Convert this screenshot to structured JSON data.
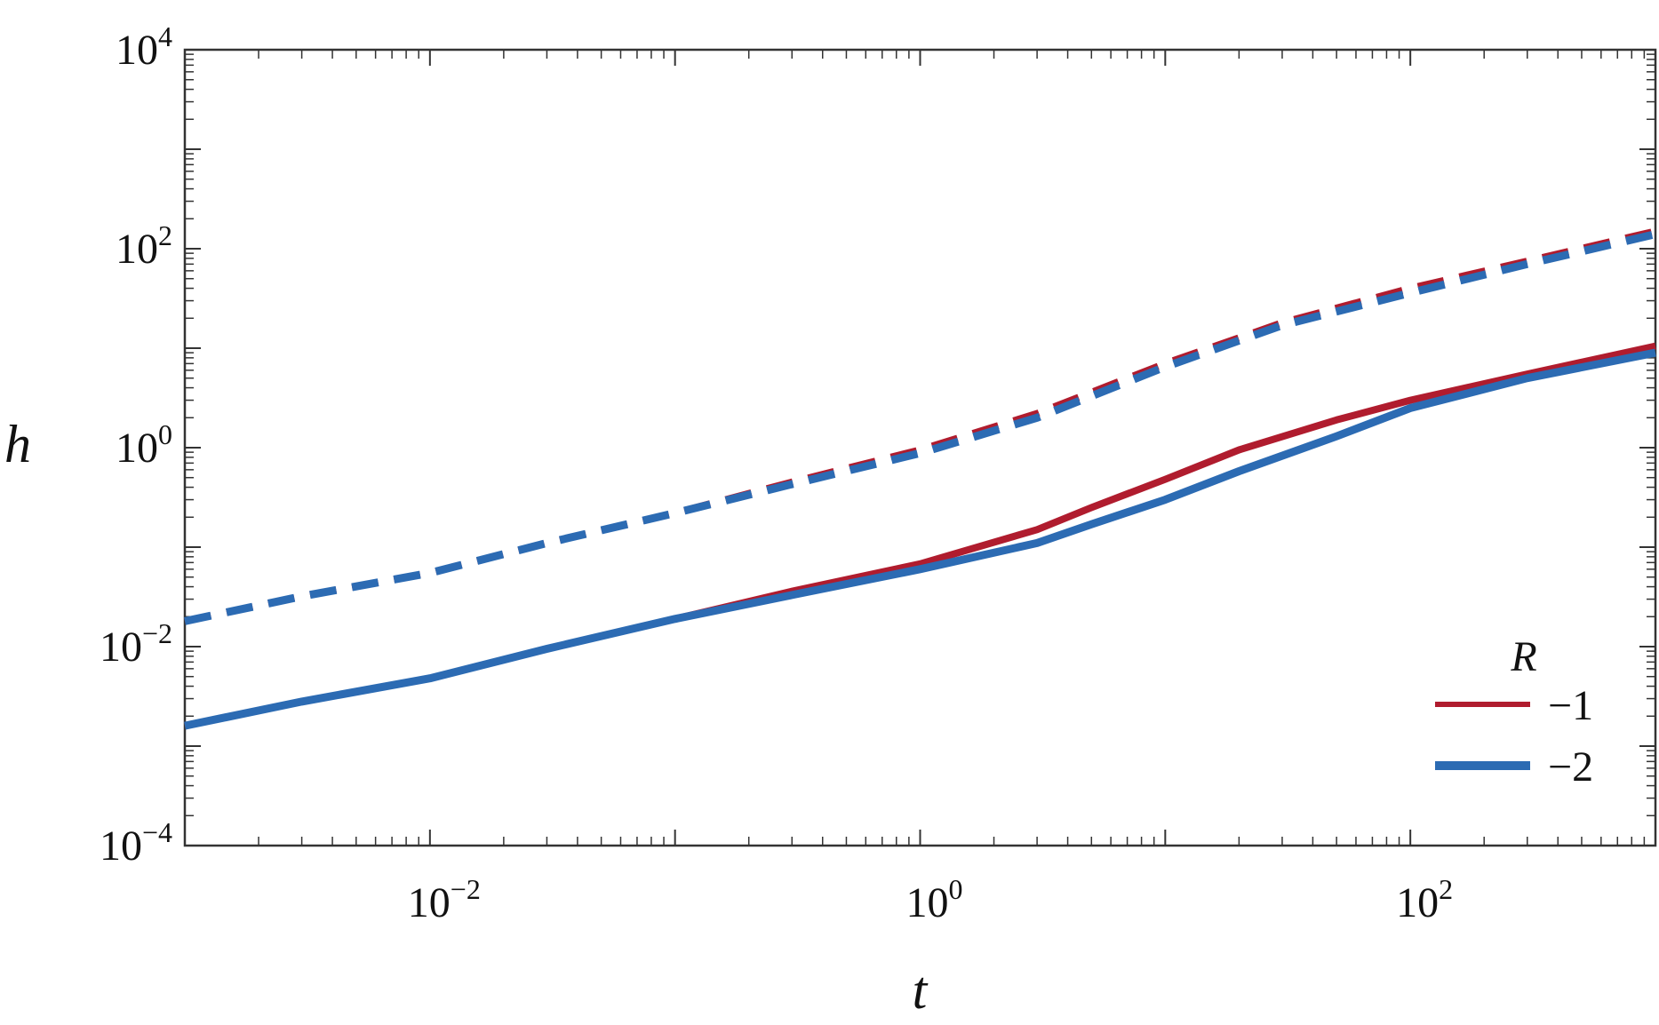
{
  "chart_data": {
    "type": "line",
    "xlabel": "t",
    "ylabel": "h",
    "xscale": "log",
    "yscale": "log",
    "xlim": [
      0.001,
      1000
    ],
    "ylim": [
      0.0001,
      10000
    ],
    "x_ticks": [
      {
        "base": "10",
        "exp": "−2",
        "value": 0.01
      },
      {
        "base": "10",
        "exp": "0",
        "value": 1
      },
      {
        "base": "10",
        "exp": "2",
        "value": 100
      }
    ],
    "y_ticks": [
      {
        "base": "10",
        "exp": "−4",
        "value": 0.0001
      },
      {
        "base": "10",
        "exp": "−2",
        "value": 0.01
      },
      {
        "base": "10",
        "exp": "0",
        "value": 1
      },
      {
        "base": "10",
        "exp": "2",
        "value": 100
      },
      {
        "base": "10",
        "exp": "4",
        "value": 10000
      }
    ],
    "grid": false,
    "legend": {
      "title": "R",
      "position": "bottom-right",
      "entries": [
        {
          "label": "−1",
          "color": "#b01c2e"
        },
        {
          "label": "−2",
          "color": "#2c6bb3"
        }
      ]
    },
    "series": [
      {
        "legend_label": "−1",
        "style": "solid",
        "color": "#b01c2e",
        "x": [
          0.001,
          0.003,
          0.01,
          0.03,
          0.1,
          0.3,
          1,
          3,
          5,
          10,
          20,
          50,
          100,
          300,
          1000
        ],
        "y": [
          0.0016,
          0.0028,
          0.0048,
          0.0095,
          0.019,
          0.036,
          0.068,
          0.15,
          0.25,
          0.48,
          0.95,
          1.9,
          3.0,
          5.5,
          10.5
        ]
      },
      {
        "legend_label": "−2",
        "style": "solid",
        "color": "#2c6bb3",
        "x": [
          0.001,
          0.003,
          0.01,
          0.03,
          0.1,
          0.3,
          1,
          3,
          5,
          10,
          20,
          50,
          100,
          300,
          1000
        ],
        "y": [
          0.0016,
          0.0028,
          0.0048,
          0.0095,
          0.019,
          0.033,
          0.06,
          0.11,
          0.17,
          0.3,
          0.58,
          1.3,
          2.5,
          5.0,
          9.0
        ]
      },
      {
        "legend_label": "−1",
        "style": "dashed",
        "color": "#b01c2e",
        "x": [
          0.001,
          0.003,
          0.01,
          0.03,
          0.1,
          0.3,
          1,
          3,
          10,
          30,
          100,
          300,
          1000
        ],
        "y": [
          0.018,
          0.032,
          0.055,
          0.11,
          0.22,
          0.45,
          0.95,
          2.2,
          7.0,
          18,
          40,
          75,
          150
        ]
      },
      {
        "legend_label": "−2",
        "style": "dashed",
        "color": "#2c6bb3",
        "x": [
          0.001,
          0.003,
          0.01,
          0.03,
          0.1,
          0.3,
          1,
          3,
          10,
          30,
          100,
          300,
          1000
        ],
        "y": [
          0.018,
          0.032,
          0.055,
          0.11,
          0.22,
          0.43,
          0.88,
          2.0,
          6.5,
          17,
          36,
          70,
          140
        ]
      }
    ]
  }
}
